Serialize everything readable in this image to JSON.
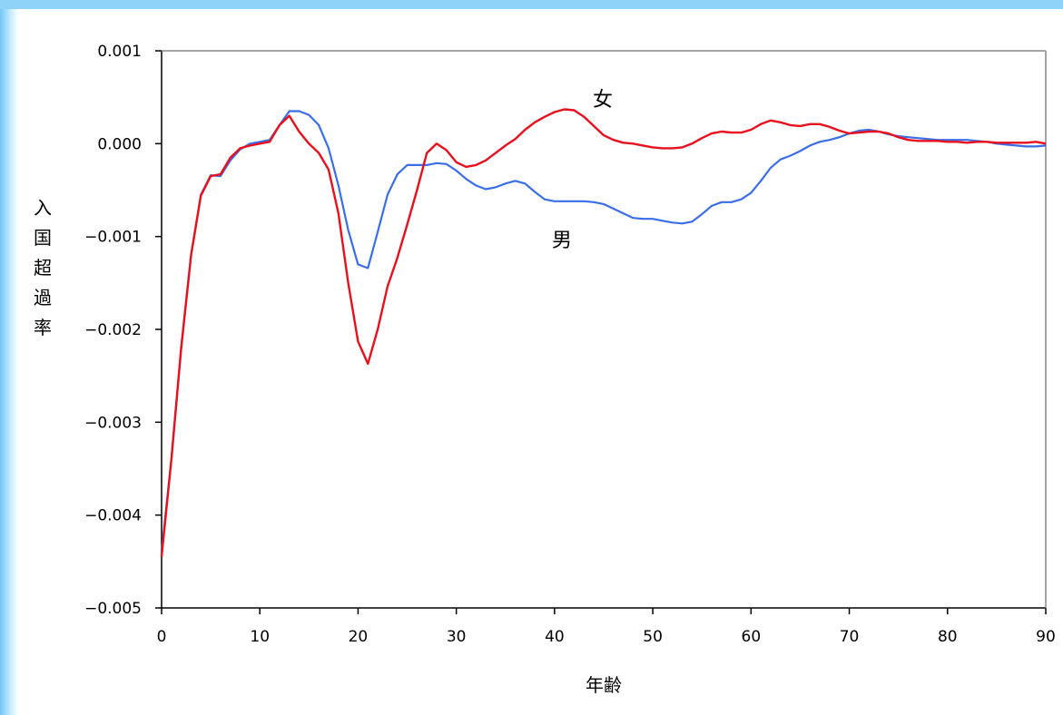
{
  "chart_data": {
    "type": "line",
    "xlabel": "年齢",
    "ylabel": "入国超過率",
    "xlim": [
      0,
      90
    ],
    "ylim": [
      -0.005,
      0.001
    ],
    "x_ticks": [
      "0",
      "10",
      "20",
      "30",
      "40",
      "50",
      "60",
      "70",
      "80",
      "90"
    ],
    "y_ticks": [
      "0.001",
      "0.000",
      "−0.001",
      "−0.002",
      "−0.003",
      "−0.004",
      "−0.005"
    ],
    "grid": false,
    "series": [
      {
        "name": "男",
        "color": "#3a6ee8",
        "x": [
          0,
          1,
          2,
          3,
          4,
          5,
          6,
          7,
          8,
          9,
          10,
          11,
          12,
          13,
          14,
          15,
          16,
          17,
          18,
          19,
          20,
          21,
          22,
          23,
          24,
          25,
          26,
          27,
          28,
          29,
          30,
          31,
          32,
          33,
          34,
          35,
          36,
          37,
          38,
          39,
          40,
          41,
          42,
          43,
          44,
          45,
          46,
          47,
          48,
          49,
          50,
          51,
          52,
          53,
          54,
          55,
          56,
          57,
          58,
          59,
          60,
          61,
          62,
          63,
          64,
          65,
          66,
          67,
          68,
          69,
          70,
          71,
          72,
          73,
          74,
          75,
          76,
          77,
          78,
          79,
          80,
          81,
          82,
          83,
          84,
          85,
          86,
          87,
          88,
          89,
          90
        ],
        "values": [
          -0.0044,
          -0.0034,
          -0.0022,
          -0.0012,
          -0.00055,
          -0.00034,
          -0.00035,
          -0.00018,
          -6e-05,
          0.0,
          2e-05,
          4e-05,
          0.0002,
          0.00035,
          0.00035,
          0.00031,
          0.0002,
          -5e-05,
          -0.00045,
          -0.00093,
          -0.0013,
          -0.00134,
          -0.00095,
          -0.00055,
          -0.00033,
          -0.00023,
          -0.00023,
          -0.00023,
          -0.00021,
          -0.00022,
          -0.00029,
          -0.00038,
          -0.00045,
          -0.00049,
          -0.00047,
          -0.00043,
          -0.0004,
          -0.00043,
          -0.00052,
          -0.0006,
          -0.00062,
          -0.00062,
          -0.00062,
          -0.00062,
          -0.00063,
          -0.00065,
          -0.0007,
          -0.00075,
          -0.0008,
          -0.00081,
          -0.00081,
          -0.00083,
          -0.00085,
          -0.00086,
          -0.00084,
          -0.00076,
          -0.00067,
          -0.00063,
          -0.00063,
          -0.0006,
          -0.00053,
          -0.0004,
          -0.00026,
          -0.00017,
          -0.00013,
          -8e-05,
          -2e-05,
          2e-05,
          4e-05,
          7e-05,
          0.00011,
          0.00014,
          0.00015,
          0.00013,
          0.0001,
          8e-05,
          7e-05,
          6e-05,
          5e-05,
          4e-05,
          4e-05,
          4e-05,
          4e-05,
          3e-05,
          2e-05,
          0.0,
          -1e-05,
          -2e-05,
          -3e-05,
          -3e-05,
          -2e-05
        ]
      },
      {
        "name": "女",
        "color": "#e8101c",
        "x": [
          0,
          1,
          2,
          3,
          4,
          5,
          6,
          7,
          8,
          9,
          10,
          11,
          12,
          13,
          14,
          15,
          16,
          17,
          18,
          19,
          20,
          21,
          22,
          23,
          24,
          25,
          26,
          27,
          28,
          29,
          30,
          31,
          32,
          33,
          34,
          35,
          36,
          37,
          38,
          39,
          40,
          41,
          42,
          43,
          44,
          45,
          46,
          47,
          48,
          49,
          50,
          51,
          52,
          53,
          54,
          55,
          56,
          57,
          58,
          59,
          60,
          61,
          62,
          63,
          64,
          65,
          66,
          67,
          68,
          69,
          70,
          71,
          72,
          73,
          74,
          75,
          76,
          77,
          78,
          79,
          80,
          81,
          82,
          83,
          84,
          85,
          86,
          87,
          88,
          89,
          90
        ],
        "values": [
          -0.00445,
          -0.0034,
          -0.0022,
          -0.0012,
          -0.00056,
          -0.00035,
          -0.00033,
          -0.00015,
          -5e-05,
          -2e-05,
          0.0,
          2e-05,
          0.0002,
          0.0003,
          0.00013,
          0.0,
          -0.0001,
          -0.00028,
          -0.00075,
          -0.0015,
          -0.00213,
          -0.00237,
          -0.002,
          -0.00154,
          -0.00123,
          -0.00087,
          -0.0005,
          -0.0001,
          0.0,
          -7e-05,
          -0.0002,
          -0.00025,
          -0.00023,
          -0.00018,
          -0.0001,
          -2e-05,
          5e-05,
          0.00015,
          0.00023,
          0.00029,
          0.00034,
          0.00037,
          0.00036,
          0.00029,
          0.00019,
          9e-05,
          4e-05,
          1e-05,
          0.0,
          -2e-05,
          -4e-05,
          -5e-05,
          -5e-05,
          -4e-05,
          0.0,
          6e-05,
          0.00011,
          0.00013,
          0.00012,
          0.00012,
          0.00015,
          0.00021,
          0.00025,
          0.00023,
          0.0002,
          0.00019,
          0.00021,
          0.00021,
          0.00018,
          0.00014,
          0.00011,
          0.00012,
          0.00013,
          0.00013,
          0.00011,
          7e-05,
          4e-05,
          3e-05,
          3e-05,
          3e-05,
          2e-05,
          2e-05,
          1e-05,
          2e-05,
          2e-05,
          1e-05,
          1e-05,
          1e-05,
          1e-05,
          2e-05,
          0.0
        ]
      }
    ]
  }
}
